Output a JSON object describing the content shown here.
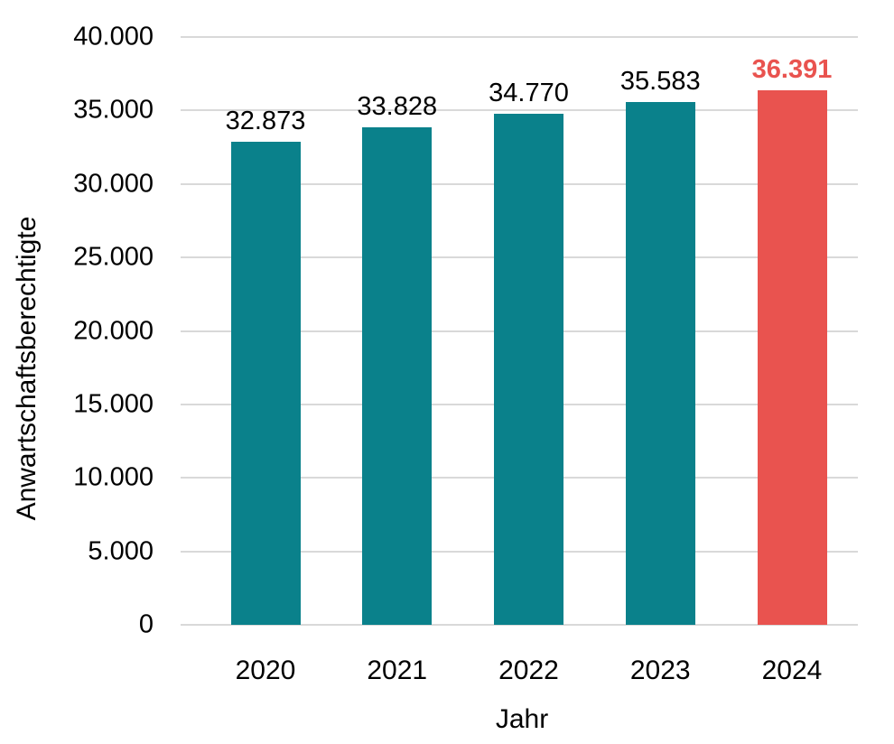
{
  "chart_data": {
    "type": "bar",
    "title": "",
    "categories": [
      "2020",
      "2021",
      "2022",
      "2023",
      "2024"
    ],
    "values": [
      32873,
      33828,
      34770,
      35583,
      36391
    ],
    "value_labels": [
      "32.873",
      "33.828",
      "34.770",
      "35.583",
      "36.391"
    ],
    "xlabel": "Jahr",
    "ylabel": "Anwartschaftsberechtigte",
    "ylim": [
      0,
      40000
    ],
    "ytick_values": [
      0,
      5000,
      10000,
      15000,
      20000,
      25000,
      30000,
      35000,
      40000
    ],
    "ytick_labels": [
      "0",
      "5.000",
      "10.000",
      "15.000",
      "20.000",
      "25.000",
      "30.000",
      "35.000",
      "40.000"
    ],
    "grid": true,
    "legend_position": "none",
    "highlight_index": 4,
    "colors": {
      "bar": "#0a818b",
      "highlight": "#e9534f",
      "gridline": "#d9d9d9",
      "text": "#000000"
    }
  }
}
